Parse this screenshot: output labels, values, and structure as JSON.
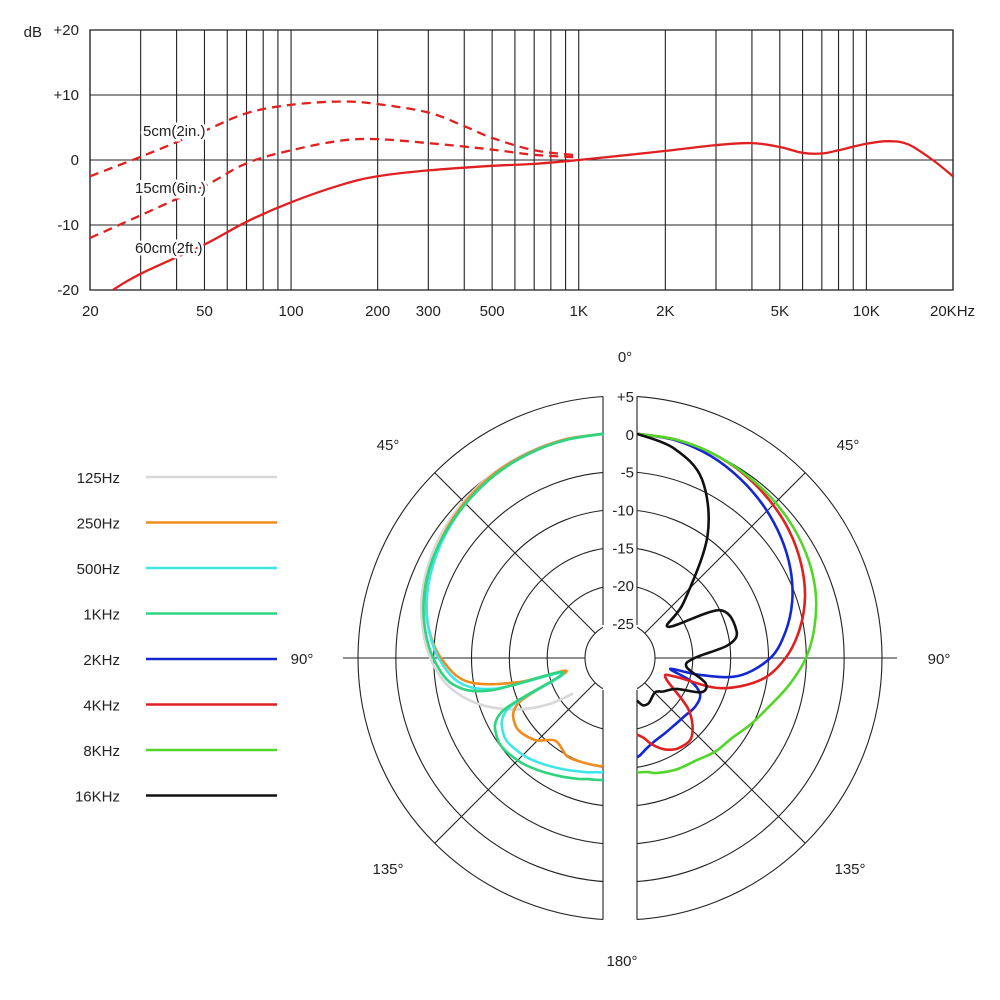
{
  "chart_data": [
    {
      "type": "line",
      "title": "",
      "xlabel": "",
      "ylabel": "dB",
      "x_scale": "log",
      "xlim": [
        20,
        20000
      ],
      "ylim": [
        -20,
        20
      ],
      "grid": true,
      "x_tick_labels": [
        {
          "value": 20,
          "label": "20"
        },
        {
          "value": 50,
          "label": "50"
        },
        {
          "value": 100,
          "label": "100"
        },
        {
          "value": 200,
          "label": "200"
        },
        {
          "value": 300,
          "label": "300"
        },
        {
          "value": 500,
          "label": "500"
        },
        {
          "value": 1000,
          "label": "1K"
        },
        {
          "value": 2000,
          "label": "2K"
        },
        {
          "value": 5000,
          "label": "5K"
        },
        {
          "value": 10000,
          "label": "10K"
        },
        {
          "value": 20000,
          "label": "20KHz"
        }
      ],
      "y_tick_labels": [
        {
          "value": 20,
          "label": "+20"
        },
        {
          "value": 10,
          "label": "+10"
        },
        {
          "value": 0,
          "label": "0"
        },
        {
          "value": -10,
          "label": "-10"
        },
        {
          "value": -20,
          "label": "-20"
        }
      ],
      "series": [
        {
          "name": "5cm(2in.)",
          "style": "dashed",
          "color": "#e02020",
          "points": [
            [
              20,
              -2.5
            ],
            [
              30,
              0.5
            ],
            [
              50,
              4.5
            ],
            [
              70,
              7.2
            ],
            [
              100,
              8.5
            ],
            [
              150,
              9.0
            ],
            [
              200,
              8.6
            ],
            [
              300,
              7.3
            ],
            [
              400,
              5.2
            ],
            [
              500,
              3.4
            ],
            [
              700,
              1.5
            ],
            [
              1000,
              0.7
            ]
          ]
        },
        {
          "name": "15cm(6in.)",
          "style": "dashed",
          "color": "#e02020",
          "points": [
            [
              20,
              -12
            ],
            [
              30,
              -8.5
            ],
            [
              50,
              -4
            ],
            [
              70,
              -0.5
            ],
            [
              100,
              1.5
            ],
            [
              150,
              3.0
            ],
            [
              200,
              3.2
            ],
            [
              300,
              2.6
            ],
            [
              500,
              1.6
            ],
            [
              700,
              0.8
            ],
            [
              1000,
              0.4
            ]
          ]
        },
        {
          "name": "60cm(2ft.)",
          "style": "solid",
          "color": "#e02020",
          "points": [
            [
              24,
              -20
            ],
            [
              30,
              -17.5
            ],
            [
              50,
              -13
            ],
            [
              70,
              -9.5
            ],
            [
              100,
              -6.5
            ],
            [
              150,
              -3.8
            ],
            [
              200,
              -2.5
            ],
            [
              300,
              -1.6
            ],
            [
              500,
              -0.9
            ],
            [
              700,
              -0.6
            ],
            [
              1000,
              0.0
            ],
            [
              1500,
              0.8
            ],
            [
              2000,
              1.4
            ],
            [
              3000,
              2.3
            ],
            [
              4000,
              2.6
            ],
            [
              5000,
              2.0
            ],
            [
              6000,
              1.1
            ],
            [
              7000,
              1.0
            ],
            [
              8000,
              1.5
            ],
            [
              10000,
              2.5
            ],
            [
              12000,
              2.9
            ],
            [
              14000,
              2.4
            ],
            [
              17000,
              0.0
            ],
            [
              20000,
              -2.5
            ]
          ]
        }
      ]
    },
    {
      "type": "polar",
      "title": "",
      "r_unit": "dB",
      "r_range": [
        -25,
        5
      ],
      "r_tick_labels": [
        "+5",
        "0",
        "-5",
        "-10",
        "-15",
        "-20",
        "-25"
      ],
      "angle_labels": [
        "0°",
        "45°",
        "45°",
        "90°",
        "90°",
        "135°",
        "135°",
        "180°"
      ],
      "legend_placement": "left",
      "series": [
        {
          "name": "125Hz",
          "color": "#d8d8d8",
          "side": "left",
          "points": [
            [
              0,
              0
            ],
            [
              10,
              -0.3
            ],
            [
              20,
              -0.7
            ],
            [
              30,
              -1.2
            ],
            [
              40,
              -1.8
            ],
            [
              50,
              -2.5
            ],
            [
              60,
              -3.3
            ],
            [
              70,
              -4.2
            ],
            [
              80,
              -5.4
            ],
            [
              90,
              -6.8
            ],
            [
              100,
              -8.8
            ],
            [
              110,
              -12
            ],
            [
              120,
              -16
            ],
            [
              130,
              -20
            ],
            [
              140,
              -23.5
            ]
          ]
        },
        {
          "name": "250Hz",
          "color": "#f08c1e",
          "side": "left",
          "points": [
            [
              0,
              0
            ],
            [
              10,
              -0.3
            ],
            [
              20,
              -0.8
            ],
            [
              30,
              -1.3
            ],
            [
              40,
              -2
            ],
            [
              50,
              -2.8
            ],
            [
              60,
              -3.7
            ],
            [
              70,
              -4.8
            ],
            [
              80,
              -6.2
            ],
            [
              90,
              -8.2
            ],
            [
              100,
              -11.5
            ],
            [
              106,
              -18
            ],
            [
              110,
              -24.5
            ],
            [
              118,
              -17
            ],
            [
              128,
              -15
            ],
            [
              140,
              -15.5
            ],
            [
              150,
              -17
            ],
            [
              160,
              -15.8
            ],
            [
              168,
              -15.6
            ],
            [
              172,
              -15.5
            ],
            [
              176,
              -15.4
            ],
            [
              180,
              -15.3
            ]
          ]
        },
        {
          "name": "500Hz",
          "color": "#3fe6e6",
          "side": "left",
          "points": [
            [
              0,
              0
            ],
            [
              10,
              -0.4
            ],
            [
              20,
              -0.9
            ],
            [
              30,
              -1.5
            ],
            [
              40,
              -2.2
            ],
            [
              50,
              -3
            ],
            [
              60,
              -3.9
            ],
            [
              70,
              -4.9
            ],
            [
              80,
              -6.2
            ],
            [
              90,
              -7.9
            ],
            [
              100,
              -10.5
            ],
            [
              106,
              -15
            ],
            [
              111,
              -24
            ],
            [
              118,
              -15.5
            ],
            [
              128,
              -13
            ],
            [
              140,
              -13
            ],
            [
              150,
              -13.5
            ],
            [
              160,
              -14
            ],
            [
              168,
              -14.3
            ],
            [
              173,
              -14.4
            ],
            [
              176,
              -14.5
            ],
            [
              180,
              -14.5
            ]
          ]
        },
        {
          "name": "1KHz",
          "color": "#2ed47e",
          "side": "left",
          "points": [
            [
              0,
              0
            ],
            [
              10,
              -0.4
            ],
            [
              20,
              -0.9
            ],
            [
              30,
              -1.5
            ],
            [
              40,
              -2.2
            ],
            [
              50,
              -2.9
            ],
            [
              60,
              -3.6
            ],
            [
              70,
              -4.5
            ],
            [
              80,
              -5.7
            ],
            [
              90,
              -7.2
            ],
            [
              100,
              -9.5
            ],
            [
              106,
              -14
            ],
            [
              110,
              -24
            ],
            [
              118,
              -14.5
            ],
            [
              128,
              -12
            ],
            [
              140,
              -12
            ],
            [
              150,
              -12.5
            ],
            [
              160,
              -13
            ],
            [
              168,
              -13.3
            ],
            [
              173,
              -13.5
            ],
            [
              176,
              -13.5
            ],
            [
              180,
              -13.5
            ]
          ]
        },
        {
          "name": "2KHz",
          "color": "#1428d0",
          "side": "right",
          "points": [
            [
              0,
              0
            ],
            [
              10,
              -0.4
            ],
            [
              20,
              -1.2
            ],
            [
              30,
              -2.3
            ],
            [
              40,
              -3.5
            ],
            [
              50,
              -4.8
            ],
            [
              60,
              -6.2
            ],
            [
              70,
              -7.8
            ],
            [
              80,
              -9.7
            ],
            [
              90,
              -12
            ],
            [
              100,
              -16
            ],
            [
              105,
              -21
            ],
            [
              108,
              -25
            ],
            [
              113,
              -22
            ],
            [
              120,
              -20
            ],
            [
              130,
              -19.6
            ],
            [
              140,
              -19.7
            ],
            [
              150,
              -19.5
            ],
            [
              160,
              -19
            ],
            [
              168,
              -18.4
            ],
            [
              174,
              -17.6
            ],
            [
              178,
              -16.8
            ],
            [
              180,
              -16.5
            ]
          ]
        },
        {
          "name": "4KHz",
          "color": "#e02020",
          "side": "right",
          "points": [
            [
              0,
              0
            ],
            [
              10,
              -0.3
            ],
            [
              20,
              -0.8
            ],
            [
              30,
              -1.5
            ],
            [
              40,
              -2.4
            ],
            [
              50,
              -3.4
            ],
            [
              60,
              -4.6
            ],
            [
              70,
              -6
            ],
            [
              80,
              -7.8
            ],
            [
              90,
              -10
            ],
            [
              100,
              -13
            ],
            [
              110,
              -18
            ],
            [
              116,
              -24
            ],
            [
              125,
              -25
            ],
            [
              135,
              -20
            ],
            [
              145,
              -17
            ],
            [
              155,
              -16.5
            ],
            [
              163,
              -17
            ],
            [
              170,
              -18
            ],
            [
              175,
              -19
            ],
            [
              180,
              -19.5
            ]
          ]
        },
        {
          "name": "8KHz",
          "color": "#52d62a",
          "side": "right",
          "points": [
            [
              0,
              0
            ],
            [
              10,
              -0.3
            ],
            [
              20,
              -0.8
            ],
            [
              30,
              -1.4
            ],
            [
              40,
              -2
            ],
            [
              50,
              -2.7
            ],
            [
              60,
              -3.5
            ],
            [
              70,
              -4.5
            ],
            [
              80,
              -5.8
            ],
            [
              90,
              -7.3
            ],
            [
              100,
              -9.2
            ],
            [
              110,
              -11
            ],
            [
              120,
              -12.2
            ],
            [
              130,
              -13.2
            ],
            [
              140,
              -13.5
            ],
            [
              150,
              -14
            ],
            [
              160,
              -14
            ],
            [
              170,
              -14.2
            ],
            [
              175,
              -14.5
            ],
            [
              180,
              -14.5
            ]
          ]
        },
        {
          "name": "16KHz",
          "color": "#111111",
          "side": "right",
          "points": [
            [
              0,
              0
            ],
            [
              10,
              -1.5
            ],
            [
              20,
              -4.5
            ],
            [
              30,
              -11
            ],
            [
              40,
              -20
            ],
            [
              45,
              -23.8
            ],
            [
              60,
              -17
            ],
            [
              75,
              -16
            ],
            [
              82,
              -17.5
            ],
            [
              90,
              -22
            ],
            [
              100,
              -23
            ],
            [
              110,
              -20
            ],
            [
              118,
              -20
            ],
            [
              128,
              -23
            ],
            [
              142,
              -24
            ],
            [
              152,
              -24.5
            ],
            [
              165,
              -23.5
            ],
            [
              172,
              -23.3
            ],
            [
              176,
              -23.6
            ],
            [
              180,
              -24
            ]
          ]
        }
      ]
    }
  ]
}
